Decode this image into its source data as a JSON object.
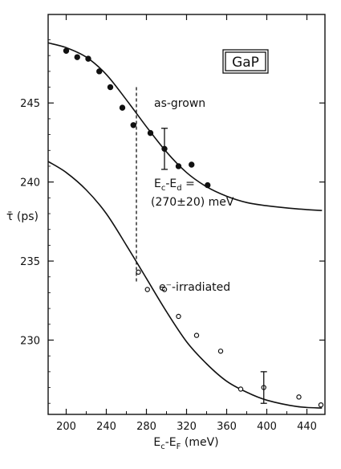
{
  "chart_data": {
    "type": "scatter",
    "title": "",
    "xlabel": "Ec-EF (meV)",
    "xlabel_parts": [
      "E",
      "c",
      "-E",
      "F",
      " (meV)"
    ],
    "ylabel": "τ̄ (ps)",
    "xlim": [
      182,
      458
    ],
    "ylim": [
      225.3,
      250.6
    ],
    "xticks": [
      200,
      240,
      280,
      320,
      360,
      400,
      440
    ],
    "yticks": [
      230,
      235,
      240,
      245
    ],
    "grid": false,
    "legend": "none",
    "series": [
      {
        "name": "as-grown",
        "marker": "filled",
        "points": [
          {
            "x": 200,
            "y": 248.3
          },
          {
            "x": 211,
            "y": 247.9
          },
          {
            "x": 222,
            "y": 247.8
          },
          {
            "x": 233,
            "y": 247.0
          },
          {
            "x": 244,
            "y": 246.0
          },
          {
            "x": 256,
            "y": 244.7
          },
          {
            "x": 267,
            "y": 243.6
          },
          {
            "x": 284,
            "y": 243.1
          },
          {
            "x": 298,
            "y": 242.1,
            "err": 1.3
          },
          {
            "x": 312,
            "y": 241.0
          },
          {
            "x": 325,
            "y": 241.1
          },
          {
            "x": 341,
            "y": 239.8
          }
        ],
        "fit": [
          {
            "x": 182,
            "y": 248.8
          },
          {
            "x": 200,
            "y": 248.5
          },
          {
            "x": 220,
            "y": 247.9
          },
          {
            "x": 240,
            "y": 246.8
          },
          {
            "x": 260,
            "y": 245.2
          },
          {
            "x": 280,
            "y": 243.5
          },
          {
            "x": 300,
            "y": 241.9
          },
          {
            "x": 320,
            "y": 240.6
          },
          {
            "x": 340,
            "y": 239.7
          },
          {
            "x": 360,
            "y": 239.1
          },
          {
            "x": 380,
            "y": 238.7
          },
          {
            "x": 400,
            "y": 238.5
          },
          {
            "x": 430,
            "y": 238.3
          },
          {
            "x": 455,
            "y": 238.2
          }
        ]
      },
      {
        "name": "e⁻-irradiated",
        "marker": "open",
        "points": [
          {
            "x": 272,
            "y": 234.3
          },
          {
            "x": 281,
            "y": 233.2
          },
          {
            "x": 298,
            "y": 233.2
          },
          {
            "x": 312,
            "y": 231.5
          },
          {
            "x": 330,
            "y": 230.3
          },
          {
            "x": 354,
            "y": 229.3
          },
          {
            "x": 374,
            "y": 226.9
          },
          {
            "x": 397,
            "y": 227.0,
            "err": 1.0
          },
          {
            "x": 432,
            "y": 226.4
          },
          {
            "x": 454,
            "y": 225.9
          }
        ],
        "fit": [
          {
            "x": 182,
            "y": 241.3
          },
          {
            "x": 200,
            "y": 240.6
          },
          {
            "x": 220,
            "y": 239.5
          },
          {
            "x": 240,
            "y": 238.0
          },
          {
            "x": 260,
            "y": 236.0
          },
          {
            "x": 280,
            "y": 233.9
          },
          {
            "x": 300,
            "y": 231.8
          },
          {
            "x": 320,
            "y": 229.9
          },
          {
            "x": 340,
            "y": 228.5
          },
          {
            "x": 360,
            "y": 227.4
          },
          {
            "x": 380,
            "y": 226.7
          },
          {
            "x": 400,
            "y": 226.2
          },
          {
            "x": 430,
            "y": 225.8
          },
          {
            "x": 455,
            "y": 225.7
          }
        ]
      }
    ],
    "annotations": {
      "material": "GaP",
      "as_grown": "as-grown",
      "irradiated": "e⁻-irradiated",
      "threshold_label_parts": [
        "E",
        "c",
        "-E",
        "d",
        " ="
      ],
      "threshold_value": "(270±20) meV",
      "threshold_x": 270,
      "threshold_y_range": [
        233.6,
        246.0
      ]
    }
  }
}
